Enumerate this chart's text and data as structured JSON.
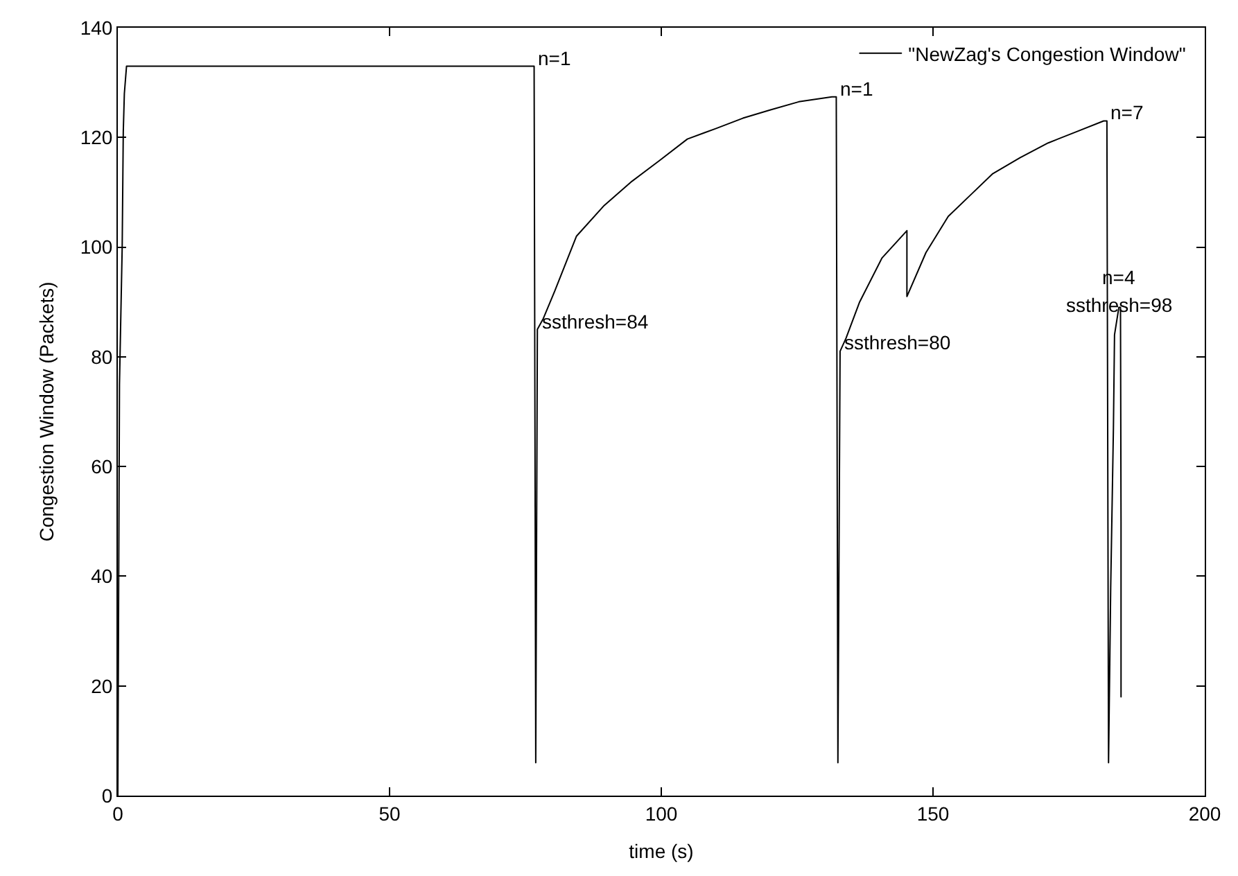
{
  "chart_data": {
    "type": "line",
    "xlabel": "time (s)",
    "ylabel": "Congestion Window (Packets)",
    "xlim": [
      0,
      200
    ],
    "xticks": [
      0,
      50,
      100,
      150,
      200
    ],
    "ylim": [
      0,
      140
    ],
    "yticks": [
      0,
      20,
      40,
      60,
      80,
      100,
      120,
      140
    ],
    "grid": false,
    "legend": "top right",
    "marker": "none",
    "line_style": "solid",
    "series": [
      {
        "name": "\"NewZag's Congestion Window\"",
        "color": "#000000",
        "x": [
          0,
          0.3,
          0.8,
          1.0,
          1.2,
          1.6,
          76.6,
          76.9,
          77.2,
          78.3,
          80.4,
          84.4,
          89.5,
          94.6,
          99.7,
          104.8,
          110,
          115,
          120,
          125.3,
          131.4,
          132.2,
          132.5,
          132.9,
          134,
          136.5,
          140.6,
          145.2,
          145.2,
          148.7,
          152.8,
          156.9,
          161,
          166,
          171.2,
          176.3,
          181.4,
          182.0,
          182.3,
          182.7,
          183.2,
          183.4,
          184.2,
          184.5,
          184.6,
          184.6
        ],
        "values": [
          0,
          75,
          100,
          121,
          128,
          133,
          133,
          6,
          85,
          87,
          92,
          102,
          107.6,
          112,
          115.8,
          119.7,
          121.6,
          123.5,
          125,
          126.5,
          127.4,
          127.4,
          6,
          81,
          83.4,
          90,
          98,
          103,
          91,
          99,
          105.6,
          109.5,
          113.4,
          116.3,
          119,
          121,
          123,
          123,
          6,
          38,
          67,
          84,
          89,
          89,
          50,
          18
        ]
      }
    ],
    "annotations": [
      {
        "text": "n=1",
        "x": 76.6,
        "y": 133
      },
      {
        "text": "ssthresh=84",
        "x": 77.2,
        "y": 85
      },
      {
        "text": "n=1",
        "x": 132.2,
        "y": 127.4
      },
      {
        "text": "ssthresh=80",
        "x": 132.9,
        "y": 81
      },
      {
        "text": "n=7",
        "x": 182.0,
        "y": 123
      },
      {
        "text": "n=4",
        "x": 184.2,
        "y": 89
      },
      {
        "text": "ssthresh=98",
        "x": 184.2,
        "y": 89
      }
    ]
  }
}
